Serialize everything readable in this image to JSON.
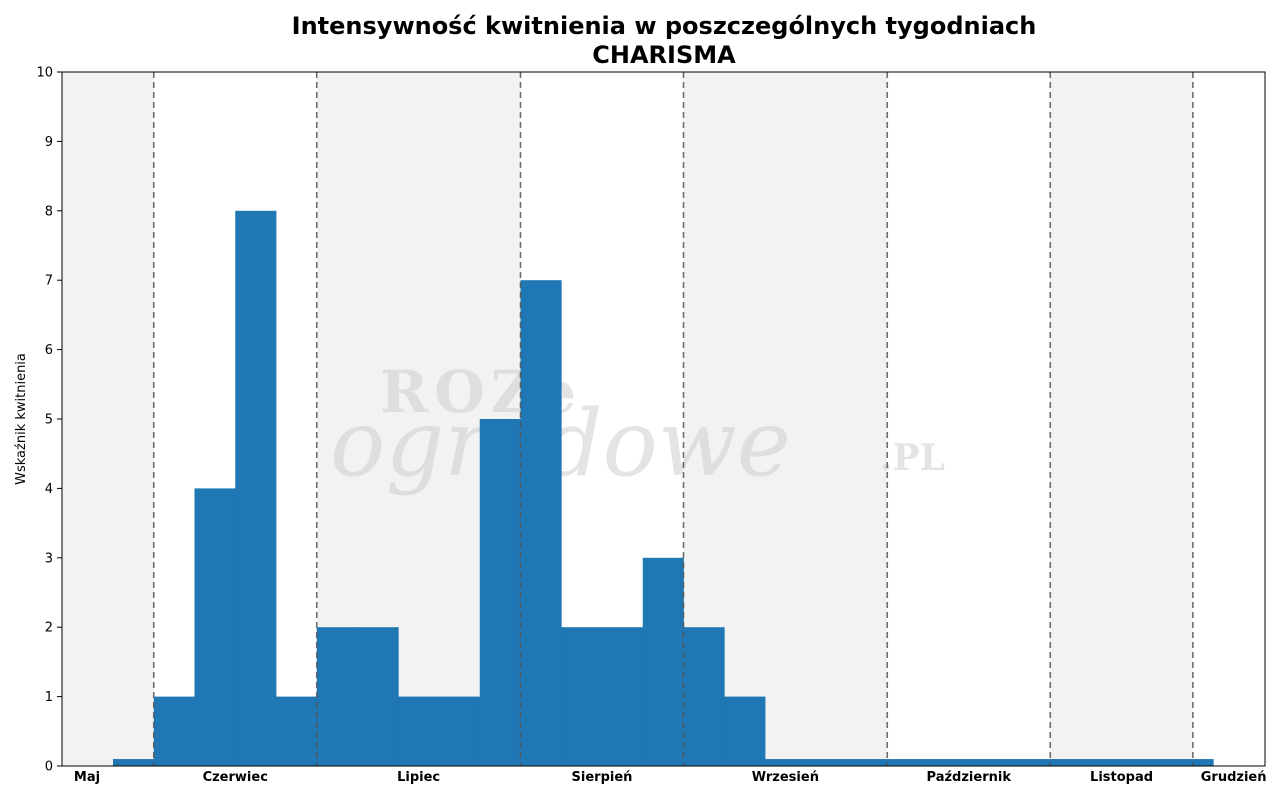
{
  "chart_data": {
    "type": "bar",
    "title": "Intensywność kwitnienia w poszczególnych tygodniach",
    "subtitle": "CHARISMA",
    "xlabel": "",
    "ylabel": "Wskaźnik kwitnienia",
    "ylim": [
      0,
      10
    ],
    "yticks": [
      0,
      1,
      2,
      3,
      4,
      5,
      6,
      7,
      8,
      9,
      10
    ],
    "grid": false,
    "bar_color": "#1f77b4",
    "band_color": "#f2f2f2",
    "months": [
      "Maj",
      "Czerwiec",
      "Lipiec",
      "Sierpień",
      "Wrzesień",
      "Październik",
      "Listopad",
      "Grudzień"
    ],
    "values": [
      0.1,
      1,
      4,
      8,
      1,
      2,
      2,
      1,
      1,
      5,
      7,
      2,
      2,
      3,
      2,
      1,
      0.1,
      0.1,
      0.1,
      0.1,
      0.1,
      0.1,
      0.1,
      0.1,
      0.1,
      0.1,
      0.1
    ]
  },
  "watermark": {
    "line1": "ROZe",
    "line2": "ogrodowe",
    "suffix": ".PL"
  }
}
